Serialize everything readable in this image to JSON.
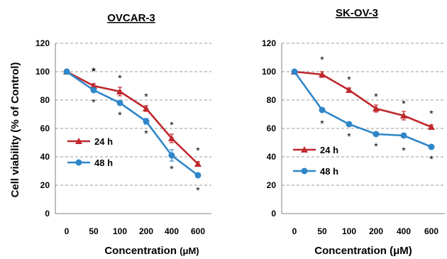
{
  "chart_data": [
    {
      "type": "line",
      "title": "OVCAR-3",
      "xlabel": "Concentration",
      "xunit": "(μM)",
      "ylabel": "Cell viability (% of Control)",
      "categories": [
        "0",
        "50",
        "100",
        "200",
        "400",
        "600"
      ],
      "yticks": [
        "0",
        "20",
        "40",
        "60",
        "80",
        "100",
        "120"
      ],
      "ylim": [
        0,
        120
      ],
      "grid": "horizontal dashed",
      "legend_position": "lower-left",
      "series": [
        {
          "name": "24 h",
          "color": "#c0282d",
          "marker": "triangle",
          "values": [
            100,
            90,
            86,
            74,
            53,
            35
          ],
          "errors": [
            1.5,
            1.5,
            3,
            2,
            3,
            1.5
          ]
        },
        {
          "name": "48 h",
          "color": "#2f86c8",
          "marker": "circle",
          "values": [
            100,
            87,
            78,
            65,
            41,
            27
          ],
          "errors": [
            1.5,
            1.5,
            1.5,
            2,
            4,
            1.5
          ]
        }
      ],
      "annotations": [
        {
          "text": "*",
          "x": "50",
          "y": 102
        },
        {
          "text": "*",
          "x": "50",
          "y": 80
        },
        {
          "text": "*",
          "x": "100",
          "y": 97
        },
        {
          "text": "*",
          "x": "100",
          "y": 71
        },
        {
          "text": "*",
          "x": "200",
          "y": 84
        },
        {
          "text": "*",
          "x": "200",
          "y": 58
        },
        {
          "text": "*",
          "x": "400",
          "y": 64
        },
        {
          "text": "*",
          "x": "400",
          "y": 33
        },
        {
          "text": "*",
          "x": "600",
          "y": 46
        },
        {
          "text": "*",
          "x": "600",
          "y": 18
        }
      ]
    },
    {
      "type": "line",
      "title": "SK-OV-3",
      "xlabel": "Concentration",
      "xunit": "(μM)",
      "ylabel": "",
      "categories": [
        "0",
        "50",
        "100",
        "200",
        "400",
        "600"
      ],
      "yticks": [
        "0",
        "20",
        "40",
        "60",
        "80",
        "100",
        "120"
      ],
      "ylim": [
        0,
        120
      ],
      "grid": "horizontal dashed",
      "legend_position": "lower-left",
      "series": [
        {
          "name": "24 h",
          "color": "#c0282d",
          "marker": "triangle",
          "values": [
            100,
            98,
            87,
            74,
            69,
            61
          ],
          "errors": [
            1,
            2,
            1.5,
            2.5,
            3,
            1.5
          ]
        },
        {
          "name": "48 h",
          "color": "#2f86c8",
          "marker": "circle",
          "values": [
            100,
            73,
            63,
            56,
            55,
            47
          ],
          "errors": [
            1,
            1.5,
            1,
            1,
            1,
            1
          ]
        }
      ],
      "annotations": [
        {
          "text": "*",
          "x": "50",
          "y": 110
        },
        {
          "text": "*",
          "x": "50",
          "y": 65
        },
        {
          "text": "*",
          "x": "100",
          "y": 96
        },
        {
          "text": "*",
          "x": "100",
          "y": 56
        },
        {
          "text": "*",
          "x": "200",
          "y": 84
        },
        {
          "text": "*",
          "x": "200",
          "y": 49
        },
        {
          "text": "*",
          "x": "400",
          "y": 79
        },
        {
          "text": "*",
          "x": "400",
          "y": 46
        },
        {
          "text": "*",
          "x": "600",
          "y": 72
        },
        {
          "text": "*",
          "x": "600",
          "y": 40
        }
      ]
    }
  ]
}
